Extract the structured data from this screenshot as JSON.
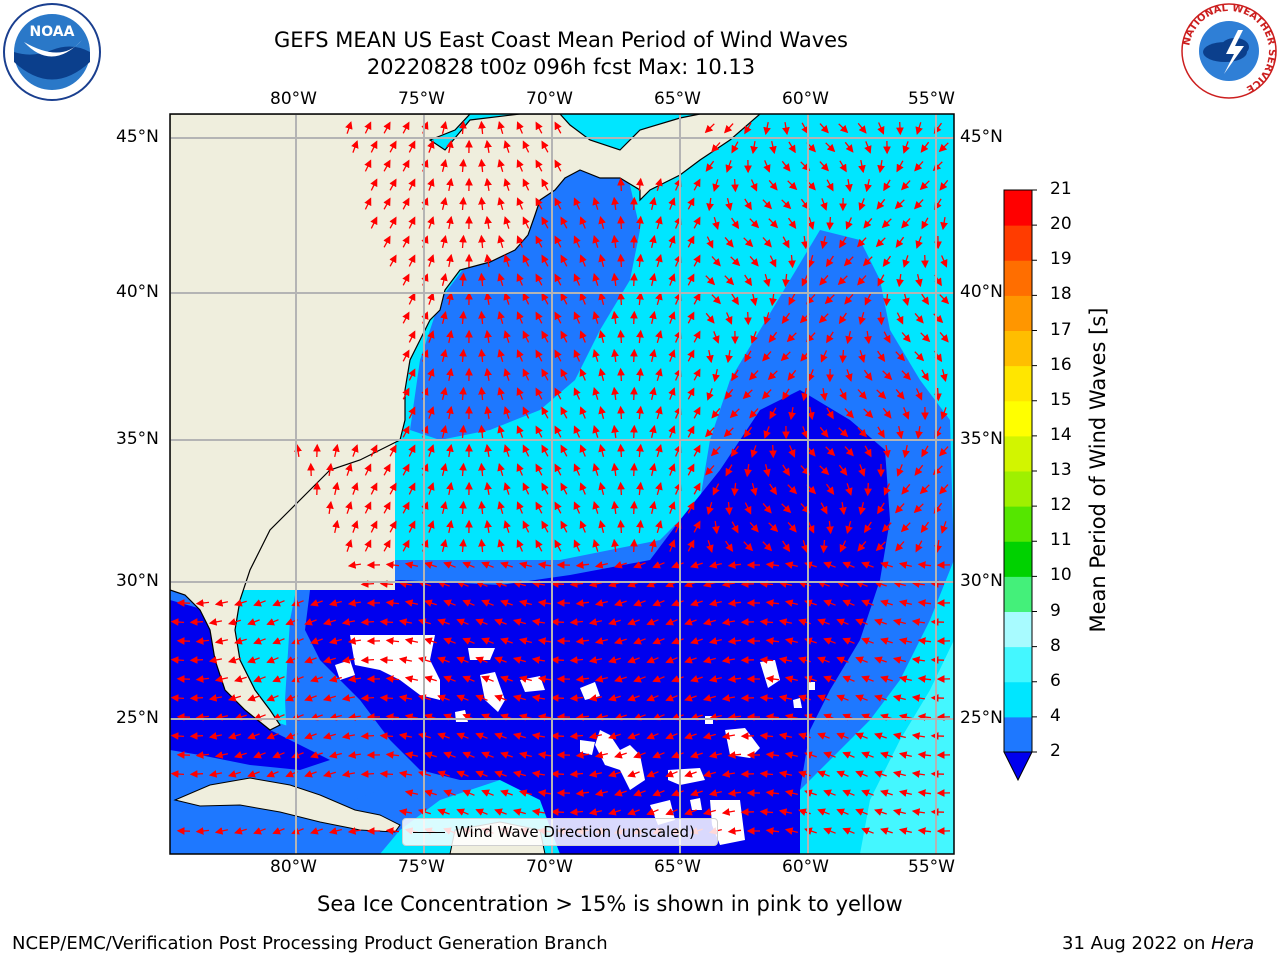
{
  "title": {
    "line1": "GEFS MEAN US East Coast Mean Period of Wind Waves",
    "line2": "20220828 t00z 096h fcst   Max: 10.13"
  },
  "logos": {
    "left": "NOAA",
    "right": "NATIONAL WEATHER SERVICE"
  },
  "axes": {
    "lon_labels": [
      "80°W",
      "75°W",
      "70°W",
      "65°W",
      "60°W",
      "55°W"
    ],
    "lat_labels": [
      "45°N",
      "40°N",
      "35°N",
      "30°N",
      "25°N"
    ],
    "lon_range": [
      -85,
      -54.5
    ],
    "lat_range": [
      20.5,
      46
    ]
  },
  "colorbar": {
    "title": "Mean Period of Wind Waves [s]",
    "ticks": [
      "2",
      "4",
      "6",
      "8",
      "9",
      "10",
      "11",
      "12",
      "13",
      "14",
      "15",
      "16",
      "17",
      "18",
      "19",
      "20",
      "21"
    ],
    "colors": [
      "#1e78ff",
      "#00e6ff",
      "#44f7ff",
      "#a8fbff",
      "#44f07a",
      "#00d200",
      "#55e600",
      "#9ff000",
      "#d2f500",
      "#ffff00",
      "#ffe600",
      "#ffbe00",
      "#ff9600",
      "#ff6e00",
      "#ff3c00",
      "#ff0000"
    ],
    "under_color": "#0000ee"
  },
  "legend": {
    "label": "Wind Wave Direction (unscaled)"
  },
  "notes": {
    "sea_ice": "Sea Ice Concentration > 15% is shown in pink to yellow",
    "credit": "NCEP/EMC/Verification Post Processing Product Generation Branch",
    "date_prefix": "31 Aug 2022 on ",
    "date_machine": "Hera"
  },
  "colors": {
    "land": "#efeedd",
    "arrow": "#ff0000",
    "grid": "#b4b4b4"
  }
}
